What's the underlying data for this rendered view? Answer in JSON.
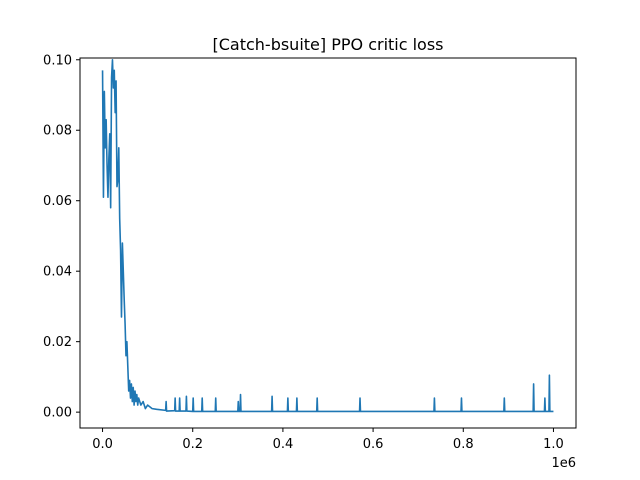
{
  "chart_data": {
    "type": "line",
    "title": "[Catch-bsuite] PPO critic loss",
    "xlabel": "",
    "ylabel": "",
    "x_offset_label": "1e6",
    "xlim": [
      -50000,
      1050000
    ],
    "ylim": [
      -0.0045,
      0.1005
    ],
    "x_ticks": [
      0,
      200000,
      400000,
      600000,
      800000,
      1000000
    ],
    "x_tick_labels": [
      "0.0",
      "0.2",
      "0.4",
      "0.6",
      "0.8",
      "1.0"
    ],
    "y_ticks": [
      0.0,
      0.02,
      0.04,
      0.06,
      0.08,
      0.1
    ],
    "y_tick_labels": [
      "0.00",
      "0.02",
      "0.04",
      "0.06",
      "0.08",
      "0.10"
    ],
    "grid": false,
    "series": [
      {
        "name": "",
        "color": "#1f77b4",
        "x": [
          0,
          2000,
          4000,
          6000,
          8000,
          10000,
          12000,
          14000,
          16000,
          18000,
          20000,
          22000,
          24000,
          26000,
          28000,
          30000,
          32000,
          34000,
          36000,
          38000,
          40000,
          42000,
          44000,
          46000,
          48000,
          50000,
          52000,
          54000,
          56000,
          58000,
          60000,
          62000,
          64000,
          66000,
          68000,
          70000,
          72000,
          74000,
          76000,
          78000,
          80000,
          85000,
          90000,
          95000,
          100000,
          110000,
          120000,
          140000,
          141000,
          142000,
          160000,
          161000,
          162000,
          170000,
          171000,
          172000,
          185000,
          186000,
          187000,
          200000,
          201000,
          202000,
          220000,
          221000,
          222000,
          250000,
          251000,
          252000,
          300000,
          301000,
          302000,
          305000,
          306000,
          307000,
          375000,
          376000,
          377000,
          410000,
          411000,
          412000,
          430000,
          431000,
          432000,
          475000,
          476000,
          477000,
          570000,
          571000,
          572000,
          735000,
          736000,
          737000,
          795000,
          796000,
          797000,
          890000,
          891000,
          892000,
          955000,
          956000,
          957000,
          980000,
          981000,
          982000,
          990000,
          991000,
          992000,
          1000000
        ],
        "y": [
          0.097,
          0.061,
          0.091,
          0.075,
          0.083,
          0.07,
          0.061,
          0.072,
          0.079,
          0.058,
          0.095,
          0.1,
          0.092,
          0.097,
          0.085,
          0.094,
          0.064,
          0.066,
          0.075,
          0.055,
          0.046,
          0.027,
          0.048,
          0.04,
          0.032,
          0.025,
          0.016,
          0.02,
          0.013,
          0.006,
          0.009,
          0.004,
          0.008,
          0.003,
          0.007,
          0.002,
          0.006,
          0.003,
          0.005,
          0.002,
          0.004,
          0.002,
          0.003,
          0.001,
          0.002,
          0.001,
          0.0008,
          0.0005,
          0.003,
          0.0003,
          0.0004,
          0.004,
          0.0003,
          0.0003,
          0.004,
          0.0003,
          0.0003,
          0.0045,
          0.0003,
          0.0002,
          0.004,
          0.0002,
          0.0002,
          0.004,
          0.0002,
          0.0002,
          0.004,
          0.0002,
          0.0002,
          0.003,
          0.0002,
          0.0002,
          0.005,
          0.0002,
          0.0002,
          0.0045,
          0.0002,
          0.0002,
          0.004,
          0.0002,
          0.0002,
          0.004,
          0.0002,
          0.0002,
          0.004,
          0.0002,
          0.0002,
          0.004,
          0.0002,
          0.0002,
          0.004,
          0.0002,
          0.0002,
          0.004,
          0.0002,
          0.0002,
          0.004,
          0.0002,
          0.0002,
          0.008,
          0.0002,
          0.0002,
          0.004,
          0.0002,
          0.0002,
          0.0105,
          0.0002,
          0.0002
        ]
      }
    ]
  }
}
